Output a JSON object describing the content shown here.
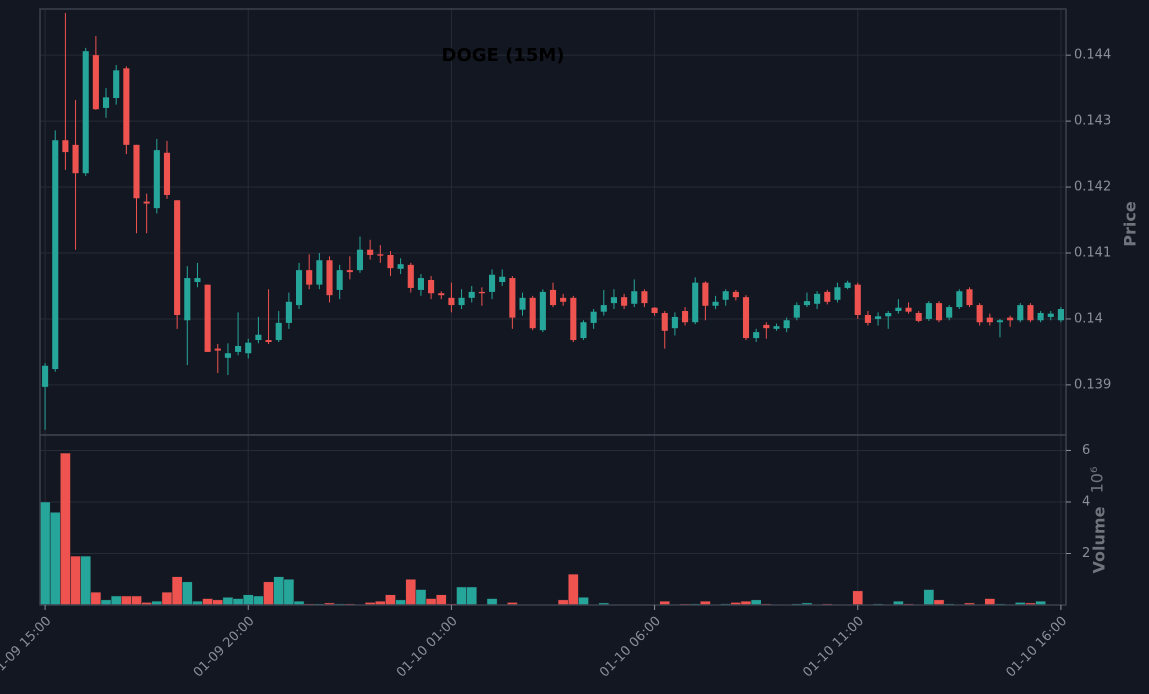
{
  "chart_data": {
    "type": "candlestick",
    "title": "DOGE (15M)",
    "ylabel": "Price",
    "volume_ylabel": "Volume",
    "volume_offset_label": "10⁶",
    "up_color": "#26a69a",
    "down_color": "#ef5350",
    "grid": true,
    "ylim": [
      0.13824,
      0.1447
    ],
    "yticks": [
      0.139,
      0.14,
      0.141,
      0.142,
      0.143,
      0.144
    ],
    "volume_ylim": [
      0,
      6.6
    ],
    "volume_yticks": [
      2,
      4,
      6
    ],
    "xticks": [
      "01-09 15:00",
      "01-09 20:00",
      "01-10 01:00",
      "01-10 06:00",
      "01-10 11:00",
      "01-10 16:00"
    ],
    "x": [
      "01-09 15:00",
      "01-09 15:15",
      "01-09 15:30",
      "01-09 15:45",
      "01-09 16:00",
      "01-09 16:15",
      "01-09 16:30",
      "01-09 16:45",
      "01-09 17:00",
      "01-09 17:15",
      "01-09 17:30",
      "01-09 17:45",
      "01-09 18:00",
      "01-09 18:15",
      "01-09 18:30",
      "01-09 18:45",
      "01-09 19:00",
      "01-09 19:15",
      "01-09 19:30",
      "01-09 19:45",
      "01-09 20:00",
      "01-09 20:15",
      "01-09 20:30",
      "01-09 20:45",
      "01-09 21:00",
      "01-09 21:15",
      "01-09 21:30",
      "01-09 21:45",
      "01-09 22:00",
      "01-09 22:15",
      "01-09 22:30",
      "01-09 22:45",
      "01-09 23:00",
      "01-09 23:15",
      "01-09 23:30",
      "01-09 23:45",
      "01-10 00:00",
      "01-10 00:15",
      "01-10 00:30",
      "01-10 00:45",
      "01-10 01:00",
      "01-10 01:15",
      "01-10 01:30",
      "01-10 01:45",
      "01-10 02:00",
      "01-10 02:15",
      "01-10 02:30",
      "01-10 02:45",
      "01-10 03:00",
      "01-10 03:15",
      "01-10 03:30",
      "01-10 03:45",
      "01-10 04:00",
      "01-10 04:15",
      "01-10 04:30",
      "01-10 04:45",
      "01-10 05:00",
      "01-10 05:15",
      "01-10 05:30",
      "01-10 05:45",
      "01-10 06:00",
      "01-10 06:15",
      "01-10 06:30",
      "01-10 06:45",
      "01-10 07:00",
      "01-10 07:15",
      "01-10 07:30",
      "01-10 07:45",
      "01-10 08:00",
      "01-10 08:15",
      "01-10 08:30",
      "01-10 08:45",
      "01-10 09:00",
      "01-10 09:15",
      "01-10 09:30",
      "01-10 09:45",
      "01-10 10:00",
      "01-10 10:15",
      "01-10 10:30",
      "01-10 10:45",
      "01-10 11:00",
      "01-10 11:15",
      "01-10 11:30",
      "01-10 11:45",
      "01-10 12:00",
      "01-10 12:15",
      "01-10 12:30",
      "01-10 12:45",
      "01-10 13:00",
      "01-10 13:15",
      "01-10 13:30",
      "01-10 13:45",
      "01-10 14:00",
      "01-10 14:15",
      "01-10 14:30",
      "01-10 14:45",
      "01-10 15:00",
      "01-10 15:15",
      "01-10 15:30",
      "01-10 15:45",
      "01-10 16:00"
    ],
    "open": [
      0.13897,
      0.13924,
      0.14271,
      0.14264,
      0.14221,
      0.144,
      0.1432,
      0.14335,
      0.1438,
      0.14264,
      0.14178,
      0.14168,
      0.14252,
      0.1418,
      0.13998,
      0.14056,
      0.14052,
      0.13955,
      0.13941,
      0.1395,
      0.13948,
      0.13968,
      0.13968,
      0.13968,
      0.13994,
      0.14021,
      0.14074,
      0.14052,
      0.14089,
      0.14044,
      0.14074,
      0.14074,
      0.14105,
      0.14098,
      0.14097,
      0.14076,
      0.14082,
      0.14044,
      0.14059,
      0.14039,
      0.14032,
      0.14021,
      0.14032,
      0.14041,
      0.14041,
      0.14056,
      0.14062,
      0.14014,
      0.14032,
      0.13983,
      0.14044,
      0.14032,
      0.14032,
      0.13971,
      0.13994,
      0.14011,
      0.14024,
      0.14033,
      0.14023,
      0.14042,
      0.14017,
      0.14009,
      0.13986,
      0.14012,
      0.13995,
      0.14055,
      0.1402,
      0.14029,
      0.14041,
      0.14033,
      0.13971,
      0.13991,
      0.13985,
      0.13986,
      0.14002,
      0.14021,
      0.14023,
      0.14041,
      0.14029,
      0.14047,
      0.14052,
      0.14006,
      0.14,
      0.14004,
      0.14012,
      0.14017,
      0.14009,
      0.14,
      0.14024,
      0.14002,
      0.14018,
      0.14045,
      0.14021,
      0.14002,
      0.13995,
      0.14002,
      0.13998,
      0.14021,
      0.13998,
      0.14003,
      0.13998
    ],
    "high": [
      0.13933,
      0.14286,
      0.14464,
      0.14332,
      0.14411,
      0.14429,
      0.1435,
      0.14385,
      0.14383,
      0.14264,
      0.1419,
      0.14273,
      0.1427,
      0.1418,
      0.1408,
      0.14085,
      0.14052,
      0.13962,
      0.13963,
      0.1401,
      0.1397,
      0.14003,
      0.14045,
      0.14012,
      0.1404,
      0.14085,
      0.14098,
      0.141,
      0.14095,
      0.14082,
      0.14095,
      0.14125,
      0.1412,
      0.14112,
      0.14103,
      0.14092,
      0.14085,
      0.14068,
      0.14065,
      0.14042,
      0.14055,
      0.14045,
      0.1405,
      0.14048,
      0.14075,
      0.14075,
      0.14065,
      0.1404,
      0.14035,
      0.14045,
      0.14055,
      0.14038,
      0.14035,
      0.13998,
      0.14015,
      0.14044,
      0.14045,
      0.14038,
      0.1406,
      0.14045,
      0.14018,
      0.14012,
      0.1401,
      0.14018,
      0.14063,
      0.14057,
      0.14035,
      0.14045,
      0.14044,
      0.14036,
      0.13985,
      0.13995,
      0.13993,
      0.14002,
      0.14025,
      0.1404,
      0.14042,
      0.14044,
      0.14055,
      0.14058,
      0.14055,
      0.14012,
      0.1401,
      0.14012,
      0.1403,
      0.14025,
      0.14012,
      0.14027,
      0.14027,
      0.14021,
      0.14045,
      0.14048,
      0.14024,
      0.14008,
      0.14,
      0.14005,
      0.14024,
      0.14024,
      0.14012,
      0.14012,
      0.14018
    ],
    "low": [
      0.13832,
      0.1392,
      0.14226,
      0.14105,
      0.14217,
      0.14317,
      0.14305,
      0.14325,
      0.1425,
      0.1413,
      0.1413,
      0.1416,
      0.14182,
      0.13985,
      0.1393,
      0.14048,
      0.1395,
      0.13918,
      0.13915,
      0.13945,
      0.1394,
      0.13963,
      0.13962,
      0.13965,
      0.13985,
      0.14015,
      0.14045,
      0.14045,
      0.14025,
      0.1403,
      0.1406,
      0.1407,
      0.1409,
      0.14085,
      0.14065,
      0.14068,
      0.1404,
      0.14035,
      0.1403,
      0.1403,
      0.1401,
      0.14015,
      0.14025,
      0.1402,
      0.1403,
      0.1405,
      0.13985,
      0.14005,
      0.13983,
      0.1398,
      0.14018,
      0.1402,
      0.13965,
      0.13968,
      0.13985,
      0.14005,
      0.14015,
      0.14015,
      0.14018,
      0.14018,
      0.14005,
      0.13955,
      0.13975,
      0.1399,
      0.13992,
      0.13998,
      0.14015,
      0.1402,
      0.14028,
      0.13968,
      0.13965,
      0.1397,
      0.13982,
      0.1398,
      0.13998,
      0.14018,
      0.14015,
      0.14022,
      0.14025,
      0.14045,
      0.14,
      0.1399,
      0.1399,
      0.13985,
      0.14008,
      0.14008,
      0.13995,
      0.13997,
      0.13995,
      0.13998,
      0.14015,
      0.14018,
      0.1399,
      0.1399,
      0.13972,
      0.13988,
      0.13995,
      0.13995,
      0.13995,
      0.13998,
      0.13995
    ],
    "close": [
      0.13929,
      0.14271,
      0.14253,
      0.14221,
      0.14406,
      0.14318,
      0.14336,
      0.14377,
      0.14264,
      0.14183,
      0.14175,
      0.14256,
      0.14188,
      0.14006,
      0.14062,
      0.14062,
      0.1395,
      0.13952,
      0.13948,
      0.13959,
      0.13964,
      0.13976,
      0.13965,
      0.13994,
      0.14026,
      0.14074,
      0.14052,
      0.14089,
      0.14036,
      0.14074,
      0.14071,
      0.14105,
      0.14097,
      0.14096,
      0.14077,
      0.14083,
      0.14047,
      0.14062,
      0.14039,
      0.14036,
      0.14021,
      0.14032,
      0.14041,
      0.14039,
      0.14067,
      0.14064,
      0.14002,
      0.14032,
      0.13986,
      0.14041,
      0.14021,
      0.14026,
      0.13968,
      0.13995,
      0.14011,
      0.14021,
      0.14033,
      0.1402,
      0.14042,
      0.14024,
      0.14009,
      0.13982,
      0.14003,
      0.13995,
      0.14055,
      0.1402,
      0.14026,
      0.14042,
      0.14033,
      0.13971,
      0.1398,
      0.13986,
      0.13989,
      0.13998,
      0.14021,
      0.14027,
      0.14038,
      0.14026,
      0.14048,
      0.14055,
      0.14006,
      0.13994,
      0.14004,
      0.14009,
      0.14017,
      0.14011,
      0.13997,
      0.14024,
      0.13998,
      0.14018,
      0.14042,
      0.14021,
      0.13995,
      0.13995,
      0.13998,
      0.13998,
      0.14021,
      0.13998,
      0.14009,
      0.14008,
      0.14015
    ],
    "volume": [
      4.0,
      3.6,
      5.9,
      1.9,
      1.9,
      0.5,
      0.2,
      0.35,
      0.35,
      0.35,
      0.1,
      0.15,
      0.5,
      1.1,
      0.9,
      0.15,
      0.25,
      0.2,
      0.3,
      0.25,
      0.4,
      0.35,
      0.9,
      1.1,
      1.0,
      0.15,
      0.05,
      0.05,
      0.08,
      0.05,
      0.05,
      0.02,
      0.1,
      0.15,
      0.4,
      0.2,
      1.0,
      0.6,
      0.25,
      0.4,
      0.05,
      0.7,
      0.7,
      0.02,
      0.25,
      0.02,
      0.1,
      0.02,
      0.01,
      0.01,
      0.01,
      0.2,
      1.2,
      0.3,
      0.02,
      0.08,
      0.03,
      0.02,
      0.02,
      0.02,
      0.02,
      0.15,
      0.02,
      0.05,
      0.05,
      0.15,
      0.02,
      0.05,
      0.1,
      0.15,
      0.2,
      0.05,
      0.03,
      0.01,
      0.05,
      0.08,
      0.02,
      0.05,
      0.02,
      0.02,
      0.55,
      0.02,
      0.05,
      0.02,
      0.15,
      0.05,
      0.02,
      0.6,
      0.2,
      0.05,
      0.02,
      0.08,
      0.02,
      0.25,
      0.05,
      0.02,
      0.1,
      0.08,
      0.15,
      0.02,
      0.02
    ]
  }
}
